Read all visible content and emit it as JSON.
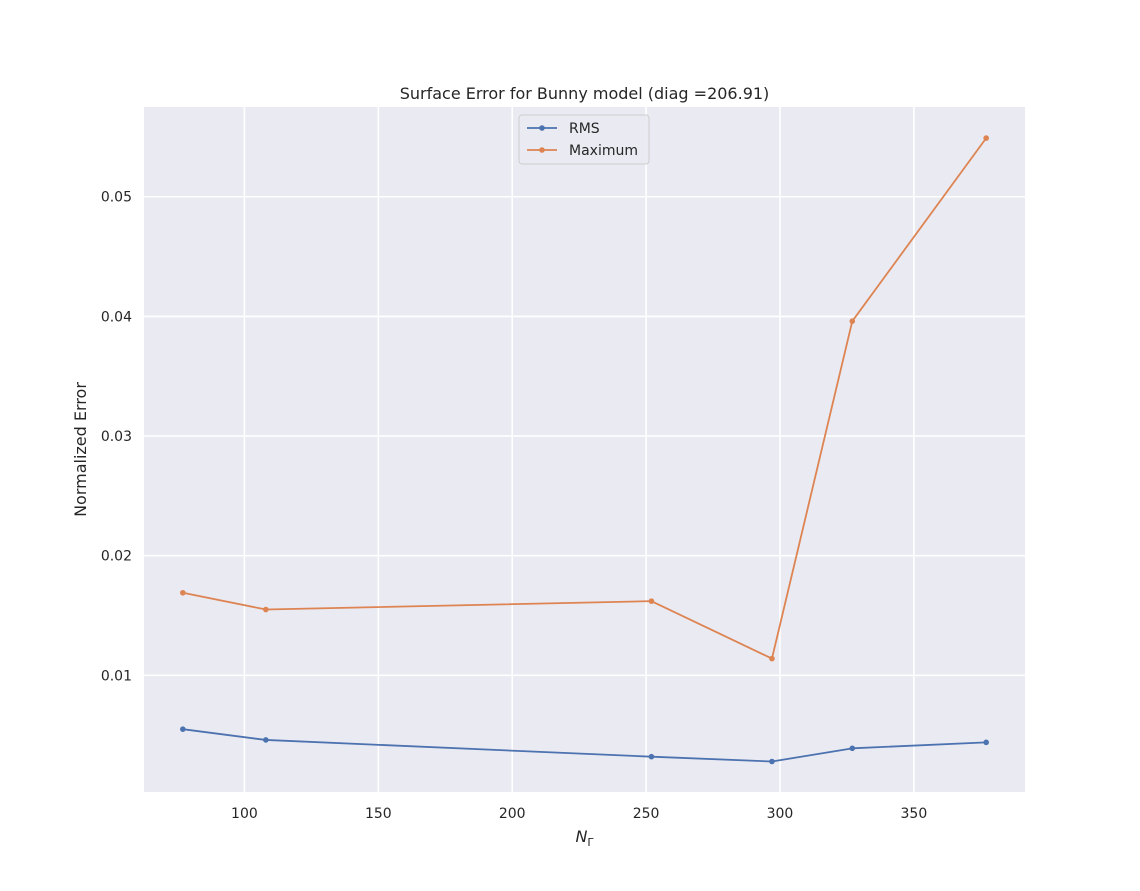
{
  "chart_data": {
    "type": "line",
    "title": "Surface Error for Bunny model (diag =206.91)",
    "xlabel_main": "N",
    "xlabel_sub": "Γ",
    "ylabel": "Normalized Error",
    "xlim": [
      62.5,
      391.5
    ],
    "ylim": [
      0.00025,
      0.0575
    ],
    "xticks": [
      100,
      150,
      200,
      250,
      300,
      350
    ],
    "yticks": [
      0.01,
      0.02,
      0.03,
      0.04,
      0.05
    ],
    "ytick_labels": [
      "0.01",
      "0.02",
      "0.03",
      "0.04",
      "0.05"
    ],
    "grid": true,
    "legend_position": "upper-center",
    "colors": {
      "background": "#eaeaf2",
      "grid": "#ffffff"
    },
    "x": [
      77,
      108,
      252,
      297,
      327,
      377
    ],
    "series": [
      {
        "name": "RMS",
        "color": "#4c72b0",
        "values": [
          0.0055,
          0.0046,
          0.0032,
          0.0028,
          0.0039,
          0.0044
        ]
      },
      {
        "name": "Maximum",
        "color": "#dd8452",
        "values": [
          0.0169,
          0.0155,
          0.0162,
          0.0114,
          0.0396,
          0.0549
        ]
      }
    ]
  }
}
